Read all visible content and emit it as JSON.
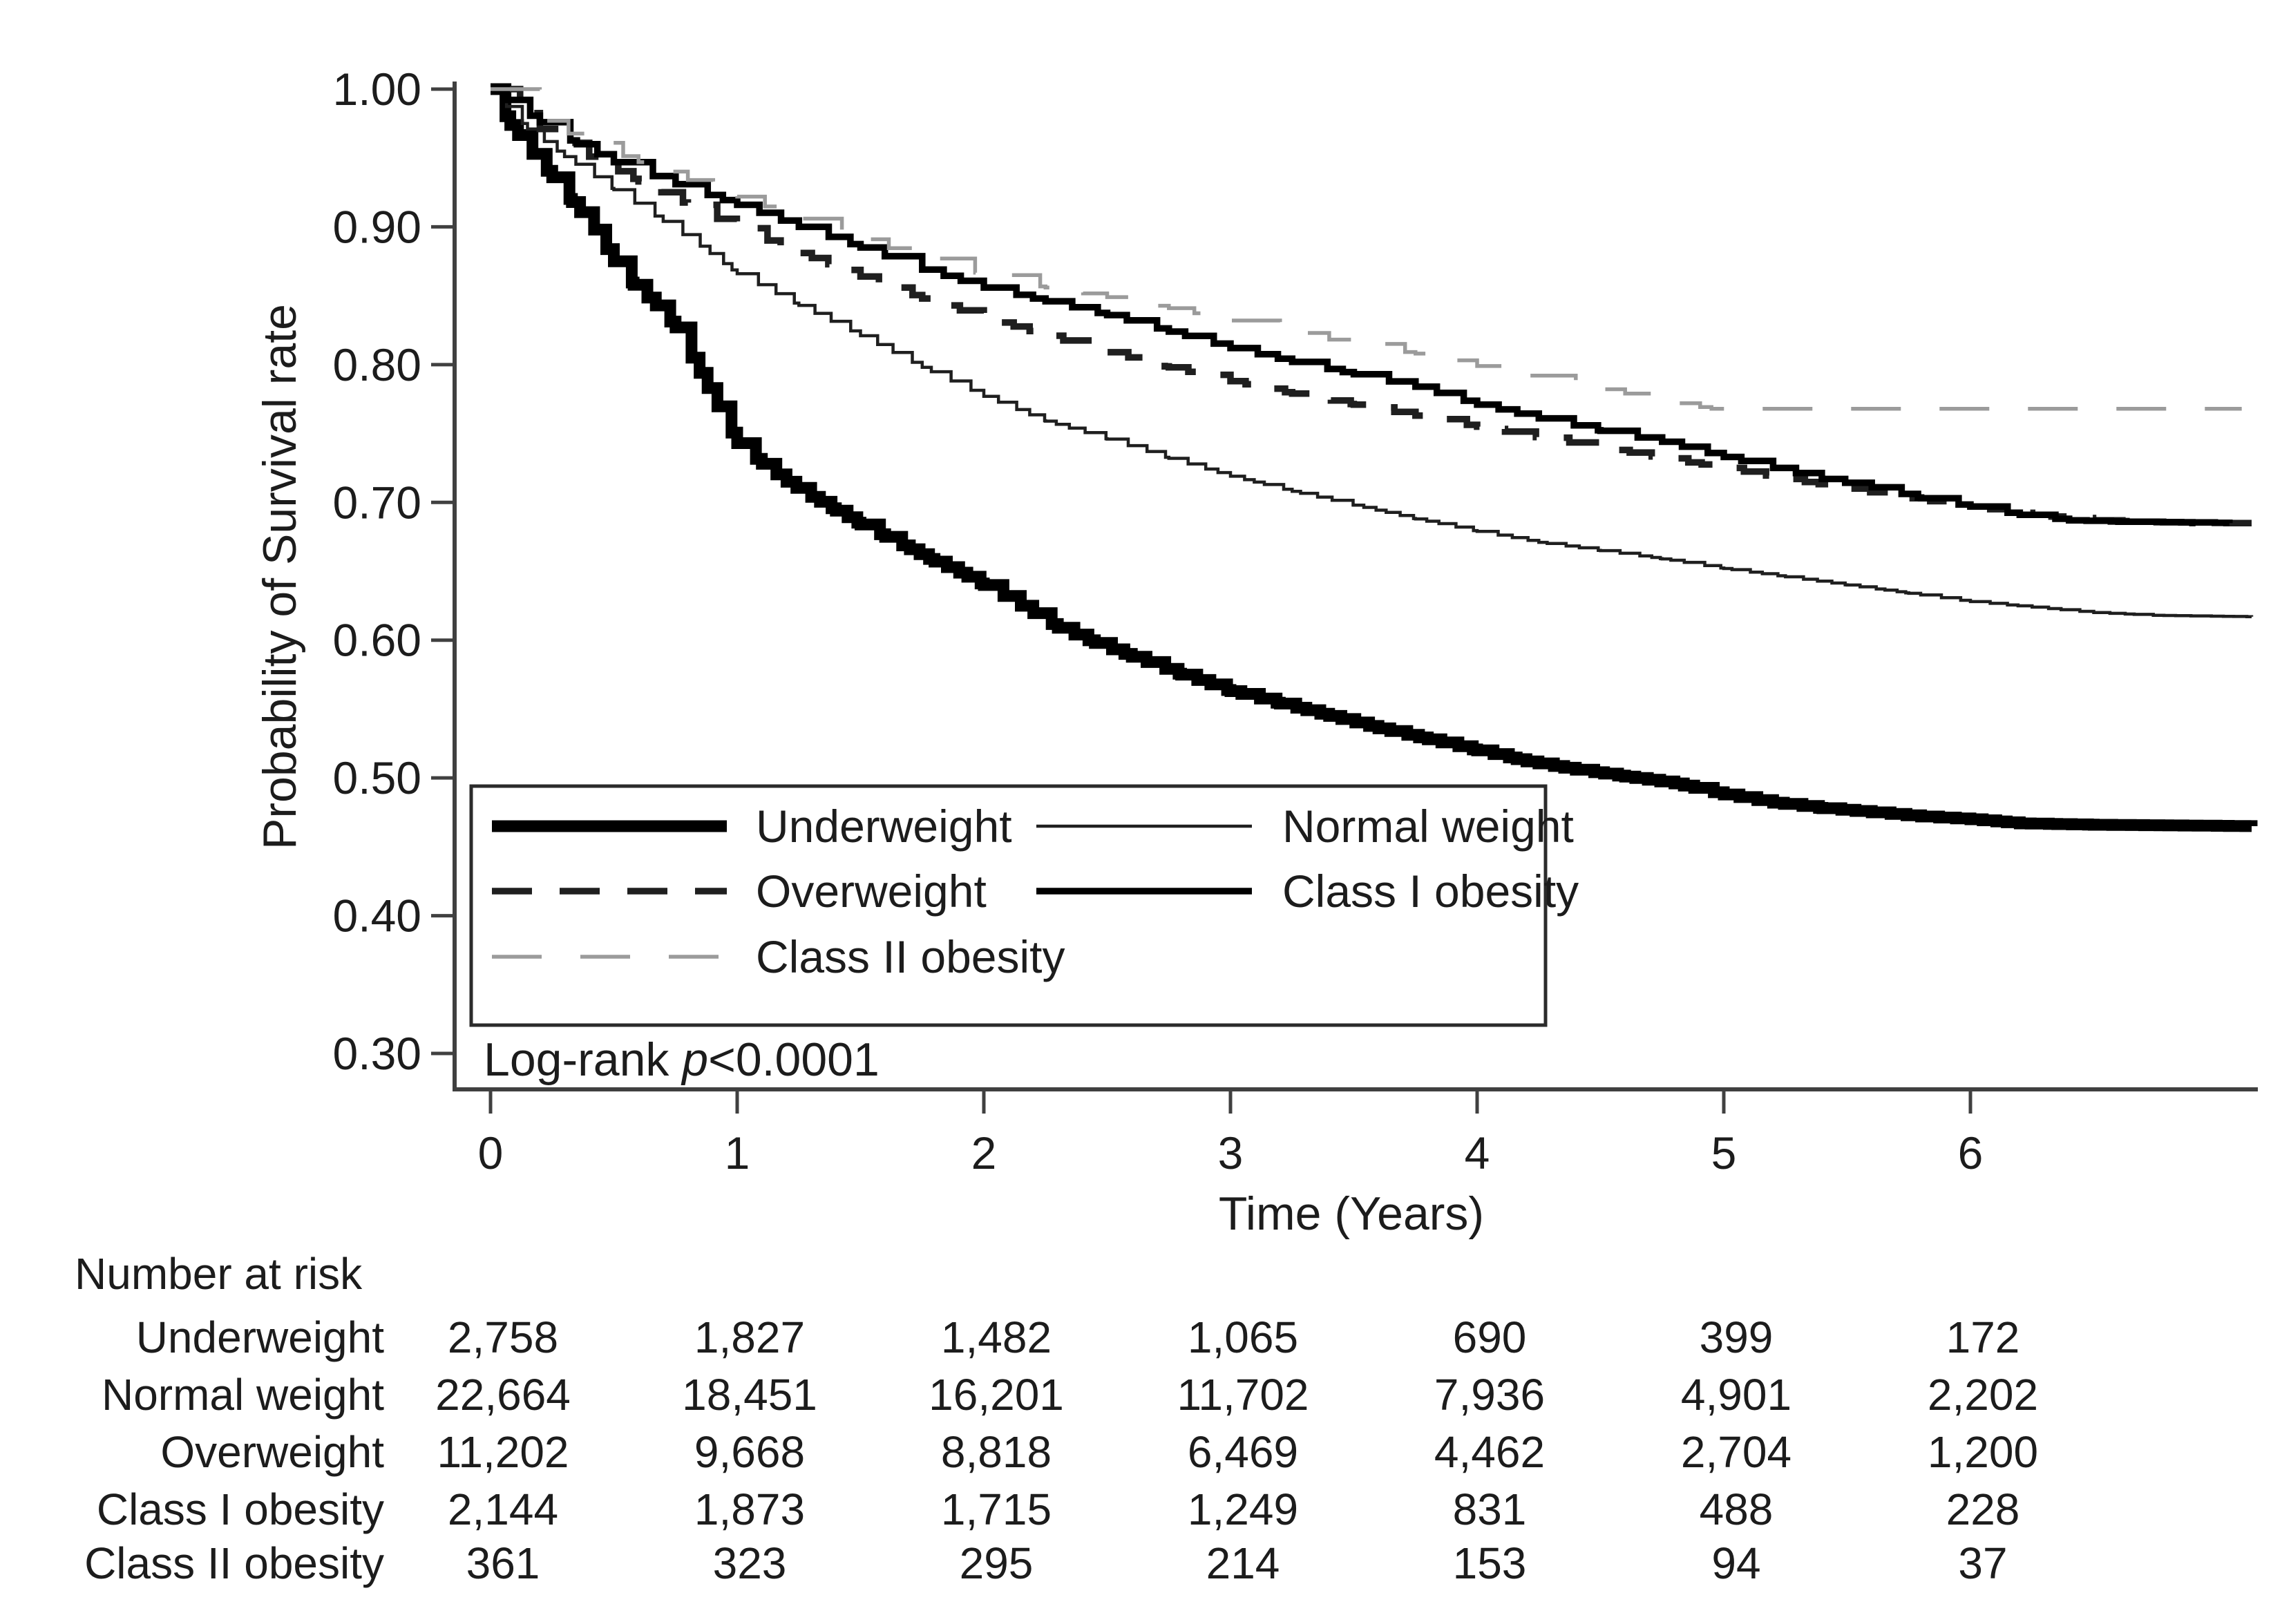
{
  "chart_data": {
    "type": "line",
    "subtype": "kaplan-meier-step",
    "title": "",
    "xlabel": "Time (Years)",
    "ylabel": "Probability of Survival rate",
    "xlim": [
      0,
      7.15
    ],
    "ylim": [
      0.3,
      1.0
    ],
    "grid": false,
    "legend_position": "inside lower-left box",
    "annotation": "Log-rank p<0.0001",
    "annotation_parts": {
      "prefix": "Log-rank ",
      "p": "p",
      "suffix": "<0.0001"
    },
    "x_ticks": [
      "0",
      "1",
      "2",
      "3",
      "4",
      "5",
      "6"
    ],
    "y_ticks": [
      "1.00",
      "0.90",
      "0.80",
      "0.70",
      "0.60",
      "0.50",
      "0.40",
      "0.30"
    ],
    "colors": {
      "black": "#000000",
      "dark": "#1f1f1f",
      "gray_dash": "#9b9b9b",
      "axis": "#404040",
      "legend_border": "#2b2b2b"
    },
    "series": [
      {
        "name": "Underweight",
        "line": "thick-solid",
        "color": "#000000",
        "width": 17,
        "dash": "",
        "step": 0.055,
        "points": [
          [
            0,
            1.0
          ],
          [
            0.08,
            0.974
          ],
          [
            0.17,
            0.953
          ],
          [
            0.25,
            0.936
          ],
          [
            0.33,
            0.918
          ],
          [
            0.42,
            0.898
          ],
          [
            0.5,
            0.875
          ],
          [
            0.58,
            0.858
          ],
          [
            0.67,
            0.843
          ],
          [
            0.75,
            0.827
          ],
          [
            0.88,
            0.783
          ],
          [
            1.0,
            0.743
          ],
          [
            1.1,
            0.728
          ],
          [
            1.2,
            0.715
          ],
          [
            1.3,
            0.704
          ],
          [
            1.4,
            0.694
          ],
          [
            1.5,
            0.684
          ],
          [
            1.6,
            0.675
          ],
          [
            1.7,
            0.666
          ],
          [
            1.8,
            0.657
          ],
          [
            1.9,
            0.649
          ],
          [
            2.0,
            0.64
          ],
          [
            2.15,
            0.625
          ],
          [
            2.3,
            0.609
          ],
          [
            2.45,
            0.598
          ],
          [
            2.6,
            0.588
          ],
          [
            2.8,
            0.575
          ],
          [
            3.0,
            0.563
          ],
          [
            3.2,
            0.554
          ],
          [
            3.4,
            0.545
          ],
          [
            3.6,
            0.536
          ],
          [
            3.8,
            0.528
          ],
          [
            4.0,
            0.52
          ],
          [
            4.2,
            0.512
          ],
          [
            4.4,
            0.506
          ],
          [
            4.6,
            0.501
          ],
          [
            4.8,
            0.496
          ],
          [
            5.0,
            0.488
          ],
          [
            5.2,
            0.482
          ],
          [
            5.4,
            0.478
          ],
          [
            5.6,
            0.475
          ],
          [
            5.8,
            0.472
          ],
          [
            6.0,
            0.47
          ],
          [
            6.2,
            0.467
          ],
          [
            6.5,
            0.466
          ],
          [
            7.14,
            0.465
          ]
        ]
      },
      {
        "name": "Normal weight",
        "line": "thin-solid",
        "color": "#1f1f1f",
        "width": 4.5,
        "dash": "",
        "step": 0.06,
        "points": [
          [
            0,
            1.0
          ],
          [
            0.15,
            0.971
          ],
          [
            0.3,
            0.951
          ],
          [
            0.5,
            0.927
          ],
          [
            0.7,
            0.904
          ],
          [
            0.85,
            0.886
          ],
          [
            1.0,
            0.866
          ],
          [
            1.25,
            0.843
          ],
          [
            1.5,
            0.821
          ],
          [
            1.75,
            0.798
          ],
          [
            2.0,
            0.777
          ],
          [
            2.25,
            0.759
          ],
          [
            2.5,
            0.746
          ],
          [
            2.75,
            0.732
          ],
          [
            3.0,
            0.719
          ],
          [
            3.25,
            0.708
          ],
          [
            3.5,
            0.698
          ],
          [
            3.75,
            0.688
          ],
          [
            4.0,
            0.679
          ],
          [
            4.25,
            0.671
          ],
          [
            4.5,
            0.665
          ],
          [
            4.75,
            0.659
          ],
          [
            5.0,
            0.652
          ],
          [
            5.25,
            0.646
          ],
          [
            5.5,
            0.64
          ],
          [
            5.75,
            0.634
          ],
          [
            6.0,
            0.628
          ],
          [
            6.25,
            0.624
          ],
          [
            6.5,
            0.62
          ],
          [
            6.75,
            0.618
          ],
          [
            7.14,
            0.617
          ]
        ]
      },
      {
        "name": "Overweight",
        "line": "dashed",
        "color": "#1f1f1f",
        "width": 9.5,
        "dash": "58 40",
        "step": 0.09,
        "points": [
          [
            0,
            1.0
          ],
          [
            0.2,
            0.971
          ],
          [
            0.4,
            0.951
          ],
          [
            0.6,
            0.933
          ],
          [
            0.8,
            0.916
          ],
          [
            1.0,
            0.899
          ],
          [
            1.25,
            0.881
          ],
          [
            1.5,
            0.864
          ],
          [
            1.75,
            0.848
          ],
          [
            2.0,
            0.834
          ],
          [
            2.25,
            0.821
          ],
          [
            2.5,
            0.809
          ],
          [
            2.75,
            0.798
          ],
          [
            3.0,
            0.788
          ],
          [
            3.25,
            0.779
          ],
          [
            3.5,
            0.771
          ],
          [
            3.75,
            0.763
          ],
          [
            4.0,
            0.755
          ],
          [
            4.25,
            0.747
          ],
          [
            4.5,
            0.74
          ],
          [
            4.75,
            0.732
          ],
          [
            5.0,
            0.725
          ],
          [
            5.25,
            0.717
          ],
          [
            5.5,
            0.71
          ],
          [
            5.75,
            0.703
          ],
          [
            6.0,
            0.697
          ],
          [
            6.25,
            0.691
          ],
          [
            6.5,
            0.687
          ],
          [
            6.9,
            0.685
          ],
          [
            7.14,
            0.685
          ]
        ]
      },
      {
        "name": "Class I obesity",
        "line": "medium-solid",
        "color": "#000000",
        "width": 9.5,
        "dash": "",
        "step": 0.11,
        "points": [
          [
            0,
            1.0
          ],
          [
            0.2,
            0.976
          ],
          [
            0.35,
            0.96
          ],
          [
            0.5,
            0.947
          ],
          [
            0.75,
            0.931
          ],
          [
            1.0,
            0.916
          ],
          [
            1.25,
            0.9
          ],
          [
            1.5,
            0.885
          ],
          [
            1.75,
            0.869
          ],
          [
            2.0,
            0.856
          ],
          [
            2.25,
            0.846
          ],
          [
            2.5,
            0.836
          ],
          [
            2.75,
            0.824
          ],
          [
            3.0,
            0.812
          ],
          [
            3.25,
            0.802
          ],
          [
            3.5,
            0.793
          ],
          [
            3.75,
            0.784
          ],
          [
            4.0,
            0.771
          ],
          [
            4.25,
            0.761
          ],
          [
            4.5,
            0.752
          ],
          [
            4.75,
            0.744
          ],
          [
            5.0,
            0.733
          ],
          [
            5.2,
            0.725
          ],
          [
            5.4,
            0.717
          ],
          [
            5.6,
            0.711
          ],
          [
            5.8,
            0.703
          ],
          [
            6.0,
            0.697
          ],
          [
            6.2,
            0.691
          ],
          [
            6.4,
            0.687
          ],
          [
            6.6,
            0.686
          ],
          [
            7.05,
            0.685
          ]
        ]
      },
      {
        "name": "Class II obesity",
        "line": "gray-dashed",
        "color": "#9b9b9b",
        "width": 5.5,
        "dash": "72 56",
        "step": 0.16,
        "points": [
          [
            0,
            1.0
          ],
          [
            0.2,
            0.977
          ],
          [
            0.4,
            0.961
          ],
          [
            0.6,
            0.947
          ],
          [
            0.8,
            0.934
          ],
          [
            1.0,
            0.922
          ],
          [
            1.25,
            0.906
          ],
          [
            1.5,
            0.891
          ],
          [
            1.75,
            0.877
          ],
          [
            2.0,
            0.865
          ],
          [
            2.25,
            0.856
          ],
          [
            2.5,
            0.849
          ],
          [
            2.75,
            0.841
          ],
          [
            3.0,
            0.832
          ],
          [
            3.25,
            0.823
          ],
          [
            3.5,
            0.815
          ],
          [
            3.75,
            0.808
          ],
          [
            4.0,
            0.799
          ],
          [
            4.2,
            0.792
          ],
          [
            4.4,
            0.785
          ],
          [
            4.6,
            0.779
          ],
          [
            4.8,
            0.772
          ],
          [
            4.95,
            0.768
          ],
          [
            7.1,
            0.768
          ]
        ]
      }
    ]
  },
  "legend": {
    "entries": [
      "Underweight",
      "Normal weight",
      "Overweight",
      "Class I obesity",
      "Class II obesity"
    ]
  },
  "risk_table": {
    "title": "Number at risk",
    "time_points": [
      "0",
      "1",
      "2",
      "3",
      "4",
      "5",
      "6"
    ],
    "rows": [
      {
        "label": "Underweight",
        "values": [
          "2,758",
          "1,827",
          "1,482",
          "1,065",
          "690",
          "399",
          "172"
        ]
      },
      {
        "label": "Normal weight",
        "values": [
          "22,664",
          "18,451",
          "16,201",
          "11,702",
          "7,936",
          "4,901",
          "2,202"
        ]
      },
      {
        "label": "Overweight",
        "values": [
          "11,202",
          "9,668",
          "8,818",
          "6,469",
          "4,462",
          "2,704",
          "1,200"
        ]
      },
      {
        "label": "Class I obesity",
        "values": [
          "2,144",
          "1,873",
          "1,715",
          "1,249",
          "831",
          "488",
          "228"
        ]
      },
      {
        "label": "Class II obesity",
        "values": [
          "361",
          "323",
          "295",
          "214",
          "153",
          "94",
          "37"
        ]
      }
    ]
  }
}
